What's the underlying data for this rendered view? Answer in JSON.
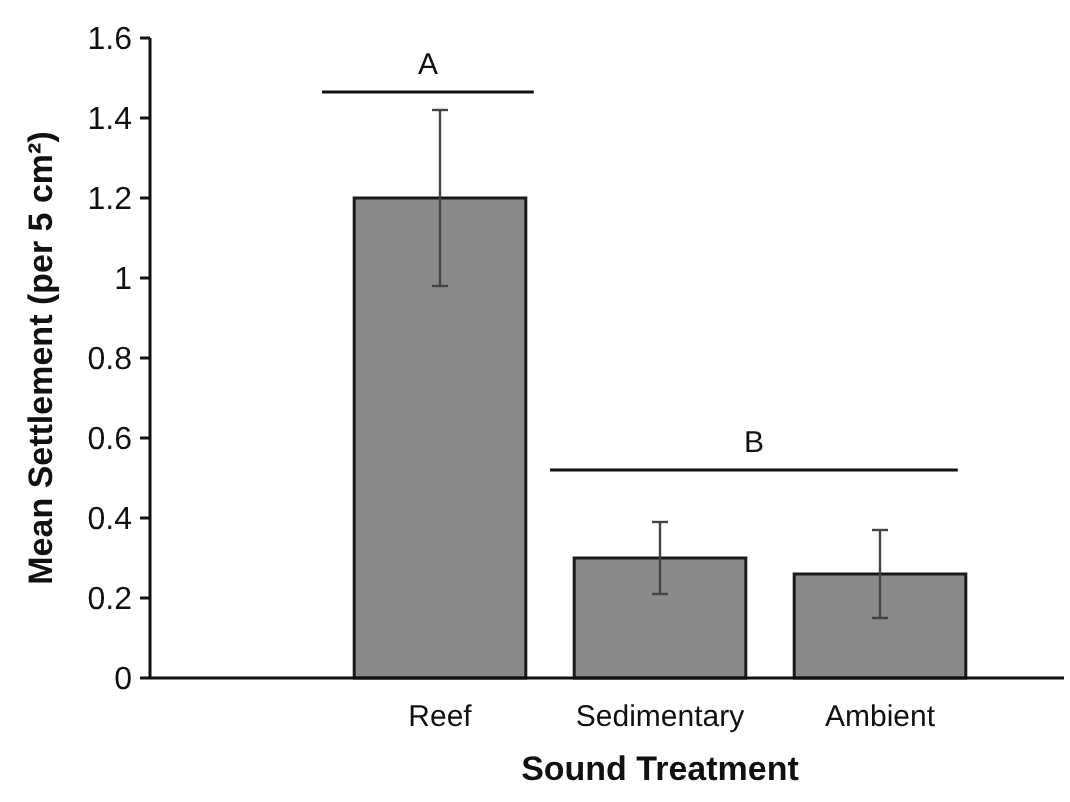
{
  "chart_data": {
    "type": "bar",
    "xlabel": "Sound Treatment",
    "ylabel": "Mean Settlement (per 5 cm²)",
    "categories": [
      "Reef",
      "Sedimentary",
      "Ambient"
    ],
    "values": [
      1.2,
      0.3,
      0.26
    ],
    "errors": [
      [
        0.98,
        1.42
      ],
      [
        0.21,
        0.39
      ],
      [
        0.15,
        0.37
      ]
    ],
    "color": "#8a8a8a",
    "ylim": [
      0,
      1.6
    ],
    "yticks": [
      0,
      0.2,
      0.4,
      0.6,
      0.8,
      1,
      1.2,
      1.4,
      1.6
    ],
    "grid": false,
    "annotations": [
      "A",
      "B"
    ]
  }
}
